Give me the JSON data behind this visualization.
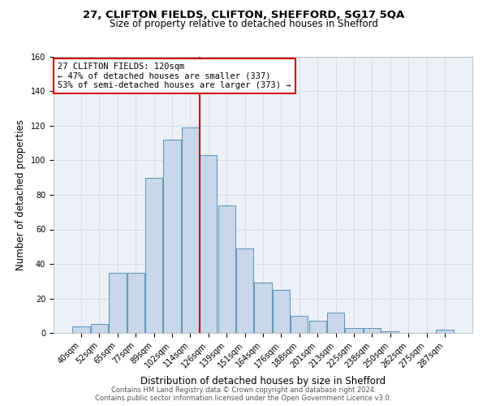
{
  "title": "27, CLIFTON FIELDS, CLIFTON, SHEFFORD, SG17 5QA",
  "subtitle": "Size of property relative to detached houses in Shefford",
  "xlabel": "Distribution of detached houses by size in Shefford",
  "ylabel": "Number of detached properties",
  "bar_labels": [
    "40sqm",
    "52sqm",
    "65sqm",
    "77sqm",
    "89sqm",
    "102sqm",
    "114sqm",
    "126sqm",
    "139sqm",
    "151sqm",
    "164sqm",
    "176sqm",
    "188sqm",
    "201sqm",
    "213sqm",
    "225sqm",
    "238sqm",
    "250sqm",
    "262sqm",
    "275sqm",
    "287sqm"
  ],
  "bar_values": [
    4,
    5,
    35,
    35,
    90,
    112,
    119,
    103,
    74,
    49,
    29,
    25,
    10,
    7,
    12,
    3,
    3,
    1,
    0,
    0,
    2
  ],
  "bar_color": "#c8d8ea",
  "bar_edge_color": "#6699bb",
  "vline_x_index": 6.5,
  "vline_color": "#cc0000",
  "annotation_text": "27 CLIFTON FIELDS: 120sqm\n← 47% of detached houses are smaller (337)\n53% of semi-detached houses are larger (373) →",
  "annotation_box_color": "#ffffff",
  "annotation_box_edge": "#cc0000",
  "ylim": [
    0,
    160
  ],
  "yticks": [
    0,
    20,
    40,
    60,
    80,
    100,
    120,
    140,
    160
  ],
  "grid_color": "#d8dde8",
  "bg_color": "#edf1f7",
  "title_fontsize": 9.5,
  "subtitle_fontsize": 8.5,
  "xlabel_fontsize": 8.5,
  "ylabel_fontsize": 8.5,
  "tick_fontsize": 7.0,
  "annotation_fontsize": 7.5,
  "footnote1": "Contains HM Land Registry data © Crown copyright and database right 2024.",
  "footnote2": "Contains public sector information licensed under the Open Government Licence v3.0.",
  "footnote_fontsize": 6.0
}
